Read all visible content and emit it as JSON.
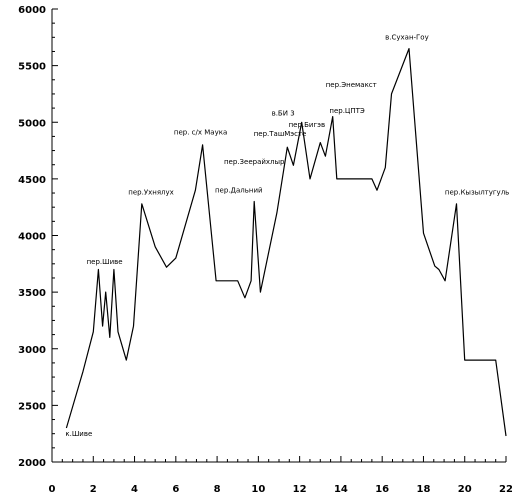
{
  "chart_data": {
    "type": "line",
    "title": "",
    "xlabel": "",
    "ylabel": "",
    "xlim": [
      0,
      22
    ],
    "ylim": [
      2000,
      6000
    ],
    "x_ticks": [
      0,
      2,
      4,
      6,
      8,
      10,
      12,
      14,
      16,
      18,
      20,
      22
    ],
    "y_ticks": [
      2000,
      2500,
      3000,
      3500,
      4000,
      4500,
      5000,
      5500,
      6000
    ],
    "x_tick_labels": [
      "0",
      "2",
      "4",
      "6",
      "8",
      "10",
      "12",
      "14",
      "16",
      "18",
      "20",
      "22"
    ],
    "y_tick_labels": [
      "2000",
      "2500",
      "3000",
      "3500",
      "4000",
      "4500",
      "5000",
      "5500",
      "6000"
    ],
    "grid": false,
    "series": [
      {
        "x": [
          0.7,
          1.5,
          2.0,
          2.25,
          2.45,
          2.6,
          2.8,
          3.0,
          3.2,
          3.6,
          3.95,
          4.35,
          5.0,
          5.55,
          6.0,
          6.95,
          7.3,
          7.95,
          9.0,
          9.35,
          9.65,
          9.8,
          10.1,
          10.9,
          11.4,
          11.7,
          12.1,
          12.5,
          13.0,
          13.25,
          13.6,
          13.8,
          15.5,
          15.75,
          16.15,
          16.45,
          17.3,
          18.0,
          18.55,
          18.75,
          19.05,
          19.6,
          20.0,
          21.5,
          22.0
        ],
        "y": [
          2300,
          2800,
          3150,
          3700,
          3200,
          3500,
          3100,
          3700,
          3150,
          2900,
          3200,
          4280,
          3900,
          3720,
          3800,
          4400,
          4800,
          3600,
          3600,
          3450,
          3600,
          4300,
          3500,
          4200,
          4780,
          4620,
          5000,
          4500,
          4820,
          4700,
          5050,
          4500,
          4500,
          4400,
          4600,
          5250,
          5650,
          4020,
          3730,
          3700,
          3600,
          4280,
          2900,
          2900,
          2230
        ]
      }
    ],
    "annotations": [
      {
        "text": "к.Шиве",
        "x": 1.3,
        "y": 2230
      },
      {
        "text": "пер.Шиве",
        "x": 2.55,
        "y": 3750
      },
      {
        "text": "пер.Ухнялух",
        "x": 4.8,
        "y": 4360
      },
      {
        "text": "пер. c/х Маука",
        "x": 7.2,
        "y": 4890
      },
      {
        "text": "пер.Дальний",
        "x": 9.05,
        "y": 4380
      },
      {
        "text": "пер.Зеерайхлыр",
        "x": 9.8,
        "y": 4630
      },
      {
        "text": "пер.ТашМэсте",
        "x": 11.05,
        "y": 4880
      },
      {
        "text": "в.БИ 3",
        "x": 11.2,
        "y": 5060
      },
      {
        "text": "пер.Бигэв",
        "x": 12.35,
        "y": 4960
      },
      {
        "text": "пер.ЦПТЭ",
        "x": 14.3,
        "y": 5080
      },
      {
        "text": "пер.Энемакст",
        "x": 14.5,
        "y": 5310
      },
      {
        "text": "в.Сухан-Гоу",
        "x": 17.2,
        "y": 5730
      },
      {
        "text": "пер.Кызылтугуль",
        "x": 20.6,
        "y": 4360
      }
    ]
  }
}
